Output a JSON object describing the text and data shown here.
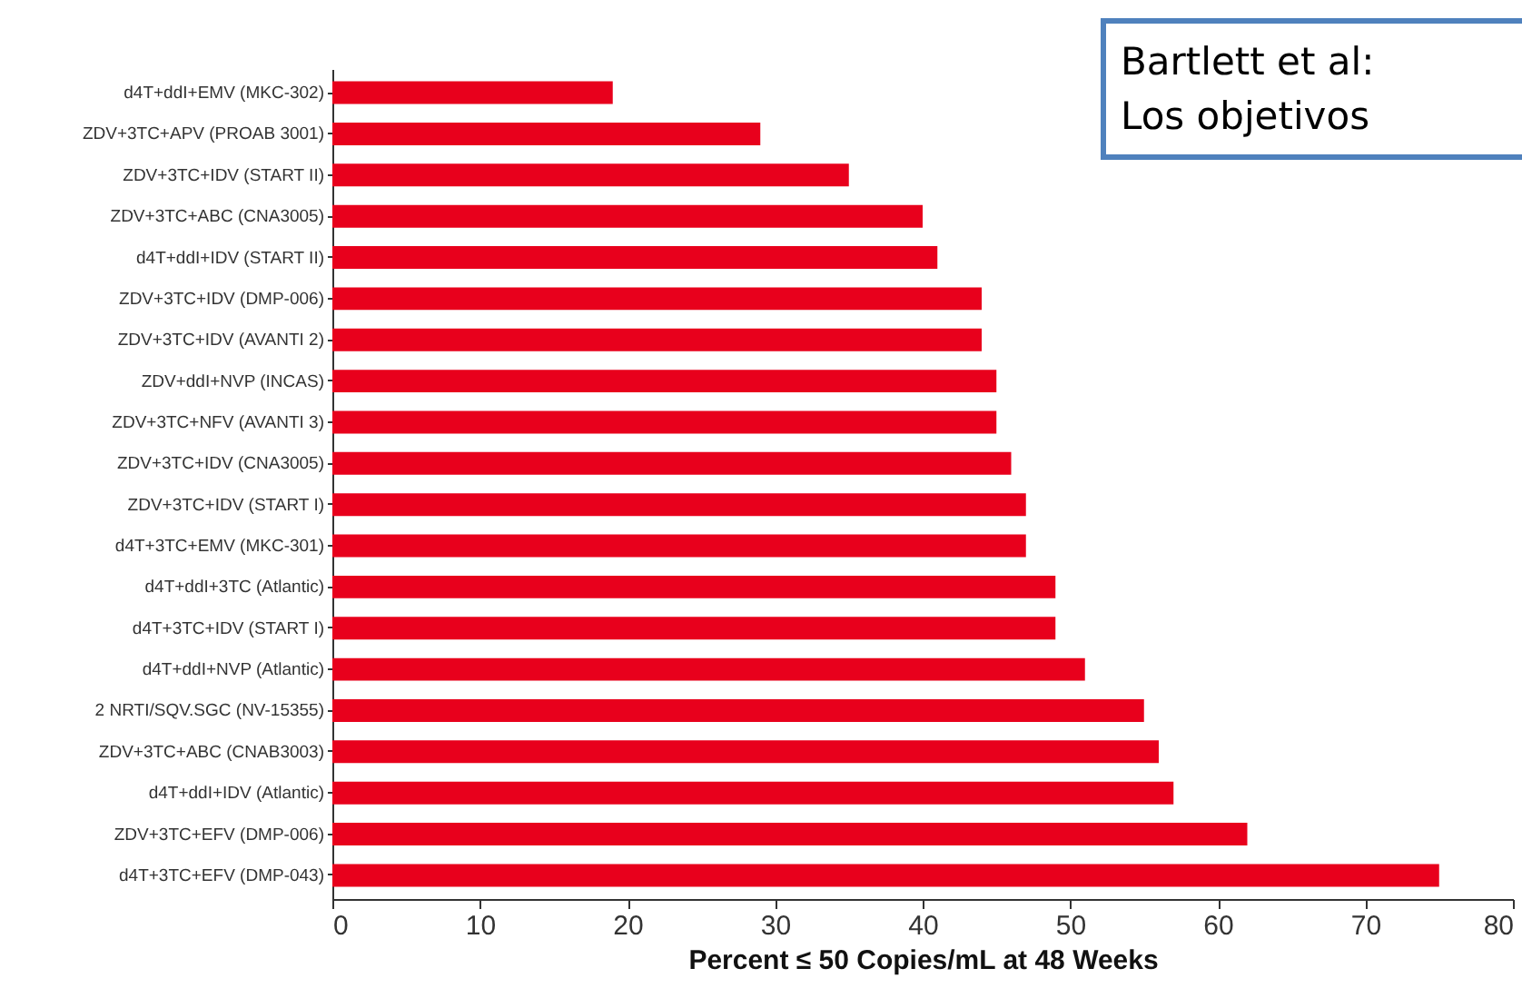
{
  "chart_data": {
    "type": "bar",
    "orientation": "horizontal",
    "xlabel": "Percent     ≤  50 Copies/mL at 48 Weeks",
    "annotations": [
      "Bartlett et al:",
      "Los objetivos"
    ],
    "categories": [
      "d4T+ddI+EMV (MKC-302)",
      "ZDV+3TC+APV (PROAB 3001)",
      "ZDV+3TC+IDV (START II)",
      "ZDV+3TC+ABC (CNA3005)",
      "d4T+ddI+IDV (START II)",
      "ZDV+3TC+IDV (DMP-006)",
      "ZDV+3TC+IDV (AVANTI 2)",
      "ZDV+ddI+NVP (INCAS)",
      "ZDV+3TC+NFV (AVANTI 3)",
      "ZDV+3TC+IDV (CNA3005)",
      "ZDV+3TC+IDV (START I)",
      "d4T+3TC+EMV (MKC-301)",
      "d4T+ddI+3TC (Atlantic)",
      "d4T+3TC+IDV (START I)",
      "d4T+ddI+NVP (Atlantic)",
      "2 NRTI/SQV.SGC (NV-15355)",
      "ZDV+3TC+ABC (CNAB3003)",
      "d4T+ddI+IDV (Atlantic)",
      "ZDV+3TC+EFV (DMP-006)",
      "d4T+3TC+EFV (DMP-043)"
    ],
    "values": [
      19,
      29,
      35,
      40,
      41,
      44,
      44,
      45,
      45,
      46,
      47,
      47,
      49,
      49,
      51,
      55,
      56,
      57,
      62,
      75
    ],
    "color": "#e8001c",
    "xlim": [
      0,
      80
    ],
    "xticks": [
      0,
      10,
      20,
      30,
      40,
      50,
      60,
      70,
      80
    ]
  }
}
